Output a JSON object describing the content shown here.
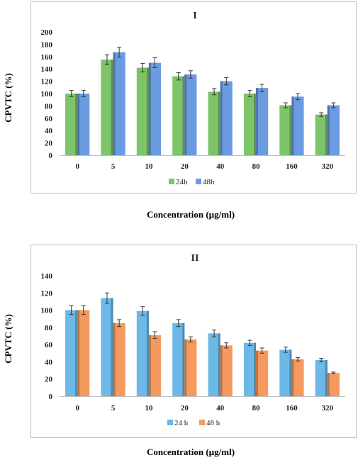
{
  "chart_data": [
    {
      "type": "bar",
      "title": "I",
      "ylabel": "CPVTC (%)",
      "xlabel": "Concentration (µg/ml)",
      "ylim": [
        0,
        200
      ],
      "yticks": [
        0,
        20,
        40,
        60,
        80,
        100,
        120,
        140,
        160,
        180,
        200
      ],
      "categories": [
        "0",
        "5",
        "10",
        "20",
        "40",
        "80",
        "160",
        "320"
      ],
      "series": [
        {
          "name": "24h",
          "color": "#7dc46b",
          "values": [
            100,
            155,
            142,
            128,
            103,
            100,
            81,
            66
          ],
          "errors": [
            5,
            8,
            7,
            6,
            5,
            5,
            4,
            3
          ]
        },
        {
          "name": "48h",
          "color": "#6b9be0",
          "values": [
            100,
            167,
            150,
            131,
            120,
            109,
            95,
            81
          ],
          "errors": [
            5,
            8,
            8,
            6,
            6,
            6,
            5,
            4
          ]
        }
      ],
      "legend": "bottom",
      "grid": false
    },
    {
      "type": "bar",
      "title": "II",
      "ylabel": "CPVTC (%)",
      "xlabel": "Concentration (µg/ml)",
      "ylim": [
        0,
        140
      ],
      "yticks": [
        0,
        20,
        40,
        60,
        80,
        100,
        120,
        140
      ],
      "categories": [
        "0",
        "5",
        "10",
        "20",
        "40",
        "80",
        "160",
        "320"
      ],
      "series": [
        {
          "name": "24 h",
          "color": "#6cb8e6",
          "values": [
            100,
            114,
            99,
            85,
            73,
            62,
            54,
            42
          ],
          "errors": [
            5,
            6,
            5,
            4,
            4,
            3,
            3,
            2
          ]
        },
        {
          "name": "48 h",
          "color": "#f59a5e",
          "values": [
            100,
            85,
            71,
            66,
            59,
            53,
            43,
            27
          ],
          "errors": [
            5,
            4,
            4,
            3,
            3,
            3,
            2,
            1
          ]
        }
      ],
      "legend": "bottom",
      "grid": false
    }
  ]
}
